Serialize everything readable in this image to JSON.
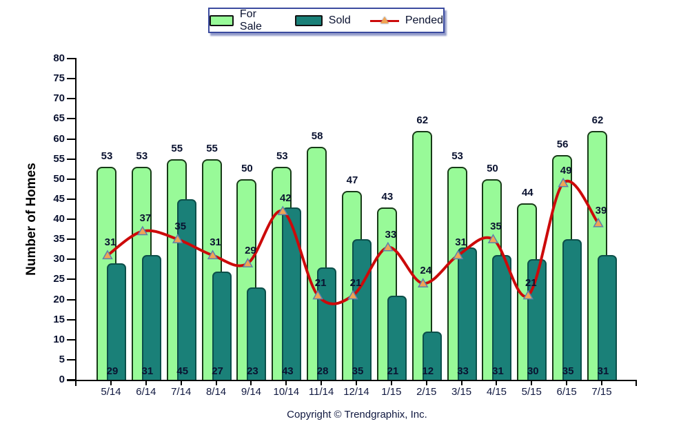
{
  "chart_data": {
    "type": "bar",
    "title": "",
    "xlabel": "",
    "ylabel": "Number of Homes",
    "ylim": [
      0,
      80
    ],
    "ytick_step": 5,
    "yticks": [
      0,
      5,
      10,
      15,
      20,
      25,
      30,
      35,
      40,
      45,
      50,
      55,
      60,
      65,
      70,
      75,
      80
    ],
    "grid": false,
    "legend_position": "top-center",
    "categories": [
      "5/14",
      "6/14",
      "7/14",
      "8/14",
      "9/14",
      "10/14",
      "11/14",
      "12/14",
      "1/15",
      "2/15",
      "3/15",
      "4/15",
      "5/15",
      "6/15",
      "7/15"
    ],
    "series": [
      {
        "name": "For Sale",
        "type": "bar",
        "color": "#98fa98",
        "values": [
          53,
          53,
          55,
          55,
          50,
          53,
          58,
          47,
          43,
          62,
          53,
          50,
          44,
          56,
          62
        ]
      },
      {
        "name": "Sold",
        "type": "bar",
        "color": "#1a8078",
        "values": [
          29,
          31,
          45,
          27,
          23,
          43,
          28,
          35,
          21,
          12,
          33,
          31,
          30,
          35,
          31
        ]
      },
      {
        "name": "Pended",
        "type": "line",
        "color": "#cc0a0a",
        "marker": "triangle",
        "marker_color": "#f0a455",
        "marker_edge_color": "#5e81ab",
        "values": [
          31,
          37,
          35,
          31,
          29,
          42,
          21,
          21,
          33,
          24,
          31,
          35,
          21,
          49,
          39
        ]
      }
    ]
  },
  "legend": {
    "swatch_icons": [
      "forsale-swatch-icon",
      "sold-swatch-icon",
      "pended-line-marker-icon"
    ]
  },
  "footer": {
    "copyright": "Copyright © Trendgraphix, Inc."
  },
  "colors": {
    "axis": "#000000",
    "label_text": "#0a1230",
    "legend_border": "#3a4a9e",
    "background": "#ffffff"
  }
}
